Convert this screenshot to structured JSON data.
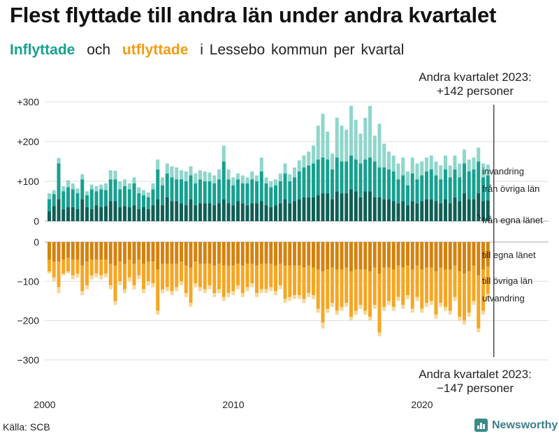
{
  "title": "Flest flyttade till andra län under andra kvartalet",
  "subtitle": {
    "in_word": "Inflyttade",
    "and_word": "och",
    "out_word": "utflyttade",
    "rest": "i Lessebo kommun per kvartal"
  },
  "source": "Källa: SCB",
  "brand": "Newsworthy",
  "colors": {
    "in_own": "#0f5f55",
    "in_other": "#17a08f",
    "in_foreign": "#8fd6cb",
    "out_own": "#d4820e",
    "out_other": "#f5a623",
    "out_foreign": "#f8d79a",
    "grid": "#dddddd",
    "axis": "#222222"
  },
  "chart_data": {
    "type": "bar",
    "stacked": true,
    "diverging": true,
    "x_start_year": 2000,
    "quarters_per_year": 4,
    "n_quarters": 94,
    "ylim_top": [
      0,
      310
    ],
    "ylim_bottom": [
      -300,
      0
    ],
    "yticks_top": [
      0,
      100,
      200,
      300
    ],
    "yticks_top_labels": [
      "0",
      "+100",
      "+200",
      "+300"
    ],
    "yticks_bottom": [
      0,
      -100,
      -200,
      -300
    ],
    "yticks_bottom_labels": [
      "0",
      "−100",
      "−200",
      "−300"
    ],
    "xticks": [
      2000,
      2010,
      2020
    ],
    "xtick_labels": [
      "2000",
      "2010",
      "2020"
    ],
    "series_in_labels": [
      "invandring",
      "från övriga län",
      "från egna länet"
    ],
    "series_out_labels": [
      "till egna länet",
      "till övriga län",
      "utvandring"
    ],
    "annotation_top": [
      "Andra kvartalet 2023:",
      "+142 personer"
    ],
    "annotation_bottom": [
      "Andra kvartalet 2023:",
      "−147 personer"
    ],
    "inflyttade_totals": [
      70,
      78,
      159,
      88,
      103,
      95,
      82,
      118,
      75,
      92,
      88,
      92,
      95,
      128,
      127,
      100,
      105,
      95,
      110,
      85,
      78,
      72,
      95,
      155,
      110,
      145,
      138,
      135,
      128,
      125,
      138,
      120,
      128,
      125,
      122,
      115,
      130,
      190,
      130,
      110,
      120,
      115,
      110,
      125,
      115,
      160,
      110,
      100,
      105,
      120,
      145,
      118,
      135,
      153,
      165,
      175,
      190,
      240,
      270,
      225,
      170,
      260,
      240,
      230,
      290,
      255,
      220,
      260,
      290,
      215,
      245,
      195,
      175,
      165,
      145,
      160,
      125,
      160,
      145,
      150,
      160,
      165,
      150,
      140,
      165,
      140,
      165,
      145,
      180,
      155,
      160,
      185,
      145,
      142
    ],
    "inflyttade_egna_lanet": [
      25,
      38,
      55,
      30,
      35,
      35,
      30,
      55,
      35,
      30,
      40,
      35,
      38,
      50,
      50,
      35,
      38,
      35,
      40,
      30,
      35,
      30,
      40,
      55,
      40,
      60,
      50,
      50,
      45,
      40,
      55,
      40,
      45,
      45,
      45,
      40,
      45,
      55,
      45,
      40,
      50,
      45,
      40,
      45,
      45,
      50,
      40,
      35,
      40,
      45,
      55,
      45,
      50,
      55,
      60,
      60,
      60,
      65,
      70,
      70,
      55,
      75,
      70,
      70,
      80,
      75,
      60,
      75,
      75,
      60,
      60,
      55,
      55,
      50,
      45,
      50,
      40,
      50,
      45,
      50,
      55,
      55,
      50,
      45,
      55,
      45,
      60,
      50,
      70,
      55,
      55,
      70,
      50,
      52
    ],
    "inflyttade_ovriga_lan": [
      30,
      30,
      90,
      45,
      50,
      45,
      40,
      50,
      30,
      50,
      35,
      45,
      40,
      55,
      55,
      45,
      50,
      45,
      55,
      40,
      30,
      30,
      40,
      75,
      50,
      60,
      60,
      55,
      60,
      60,
      60,
      55,
      60,
      55,
      55,
      55,
      60,
      95,
      60,
      50,
      55,
      50,
      55,
      60,
      55,
      75,
      55,
      50,
      50,
      55,
      65,
      55,
      60,
      70,
      75,
      80,
      85,
      90,
      90,
      85,
      75,
      85,
      80,
      80,
      85,
      80,
      85,
      80,
      85,
      90,
      75,
      80,
      75,
      75,
      60,
      65,
      50,
      70,
      60,
      65,
      70,
      75,
      65,
      60,
      75,
      65,
      70,
      60,
      75,
      70,
      75,
      80,
      60,
      63
    ],
    "utflyttade_totals": [
      -80,
      -100,
      -130,
      -85,
      -80,
      -95,
      -90,
      -135,
      -120,
      -95,
      -90,
      -95,
      -90,
      -120,
      -160,
      -110,
      -130,
      -100,
      -120,
      -95,
      -130,
      -110,
      -115,
      -185,
      -130,
      -125,
      -135,
      -125,
      -110,
      -140,
      -165,
      -115,
      -125,
      -130,
      -120,
      -140,
      -130,
      -150,
      -140,
      -135,
      -120,
      -140,
      -125,
      -115,
      -140,
      -130,
      -130,
      -125,
      -135,
      -120,
      -155,
      -150,
      -145,
      -145,
      -155,
      -140,
      -145,
      -180,
      -220,
      -180,
      -165,
      -185,
      -175,
      -165,
      -200,
      -185,
      -170,
      -185,
      -200,
      -170,
      -240,
      -175,
      -160,
      -175,
      -150,
      -170,
      -145,
      -180,
      -150,
      -180,
      -165,
      -160,
      -195,
      -165,
      -175,
      -185,
      -150,
      -200,
      -210,
      -190,
      -160,
      -230,
      -185,
      -147
    ],
    "utflyttade_egna_lanet": [
      -45,
      -50,
      -50,
      -45,
      -40,
      -45,
      -45,
      -60,
      -50,
      -45,
      -45,
      -45,
      -45,
      -55,
      -60,
      -50,
      -55,
      -45,
      -55,
      -45,
      -55,
      -50,
      -50,
      -70,
      -55,
      -55,
      -55,
      -55,
      -50,
      -60,
      -65,
      -50,
      -55,
      -55,
      -55,
      -60,
      -55,
      -60,
      -60,
      -60,
      -55,
      -60,
      -55,
      -55,
      -60,
      -55,
      -55,
      -55,
      -60,
      -55,
      -60,
      -60,
      -60,
      -60,
      -65,
      -60,
      -65,
      -70,
      -75,
      -70,
      -65,
      -70,
      -70,
      -65,
      -75,
      -70,
      -70,
      -70,
      -75,
      -65,
      -80,
      -65,
      -65,
      -70,
      -60,
      -65,
      -60,
      -70,
      -60,
      -70,
      -65,
      -65,
      -75,
      -65,
      -70,
      -70,
      -60,
      -75,
      -80,
      -75,
      -60,
      -85,
      -70,
      -62
    ],
    "utflyttade_ovriga_lan": [
      -30,
      -40,
      -65,
      -35,
      -35,
      -40,
      -35,
      -65,
      -60,
      -40,
      -35,
      -40,
      -35,
      -55,
      -90,
      -50,
      -65,
      -45,
      -55,
      -40,
      -65,
      -50,
      -55,
      -105,
      -65,
      -60,
      -70,
      -60,
      -50,
      -70,
      -90,
      -55,
      -60,
      -65,
      -55,
      -70,
      -65,
      -80,
      -70,
      -65,
      -55,
      -70,
      -60,
      -50,
      -70,
      -65,
      -65,
      -60,
      -65,
      -55,
      -85,
      -80,
      -75,
      -75,
      -80,
      -70,
      -70,
      -100,
      -130,
      -100,
      -90,
      -105,
      -95,
      -90,
      -115,
      -105,
      -90,
      -105,
      -115,
      -95,
      -150,
      -100,
      -85,
      -95,
      -80,
      -95,
      -75,
      -100,
      -80,
      -100,
      -90,
      -85,
      -110,
      -90,
      -95,
      -105,
      -80,
      -115,
      -120,
      -105,
      -90,
      -135,
      -105,
      -70
    ]
  }
}
